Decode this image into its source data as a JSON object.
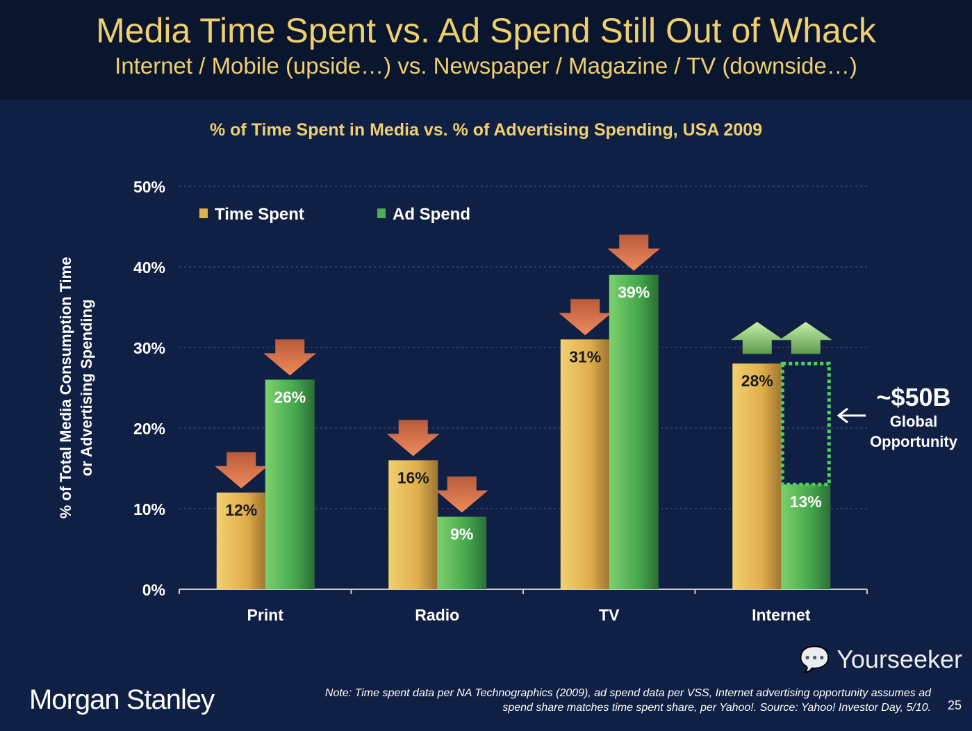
{
  "header": {
    "title": "Media Time Spent vs. Ad Spend Still Out of Whack",
    "subtitle": "Internet / Mobile (upside…) vs. Newspaper / Magazine / TV (downside…)"
  },
  "chart_data": {
    "type": "bar",
    "title": "% of Time Spent in Media vs. % of Advertising Spending, USA 2009",
    "ylabel_line1": "% of Total Media Consumption Time",
    "ylabel_line2": "or Advertising Spending",
    "xlabel": "",
    "ylim": [
      0,
      50
    ],
    "yticks": [
      "0%",
      "10%",
      "20%",
      "30%",
      "40%",
      "50%"
    ],
    "categories": [
      "Print",
      "Radio",
      "TV",
      "Internet"
    ],
    "series": [
      {
        "name": "Time Spent",
        "values": [
          12,
          16,
          31,
          28
        ],
        "labels": [
          "12%",
          "16%",
          "31%",
          "28%"
        ],
        "color": "#e3b24f"
      },
      {
        "name": "Ad Spend",
        "values": [
          26,
          9,
          39,
          13
        ],
        "labels": [
          "26%",
          "9%",
          "39%",
          "13%"
        ],
        "color": "#4fae55"
      }
    ],
    "arrows": [
      [
        "down",
        "down"
      ],
      [
        "down",
        "down"
      ],
      [
        "down",
        "down"
      ],
      [
        "up",
        "up"
      ]
    ],
    "legend": "top-left",
    "grid": true,
    "annotation": {
      "gap_from": 13,
      "gap_to": 28,
      "amount": "~$50B",
      "line1": "Global",
      "line2": "Opportunity"
    }
  },
  "footer": {
    "logo": "Morgan Stanley",
    "note_line1": "Note: Time spent data per NA Technographics (2009), ad spend data per VSS, Internet advertising opportunity assumes ad",
    "note_line2": "spend share matches time spent share, per Yahoo!. Source: Yahoo! Investor Day, 5/10.",
    "page": "25",
    "watermark": "Yourseeker"
  }
}
